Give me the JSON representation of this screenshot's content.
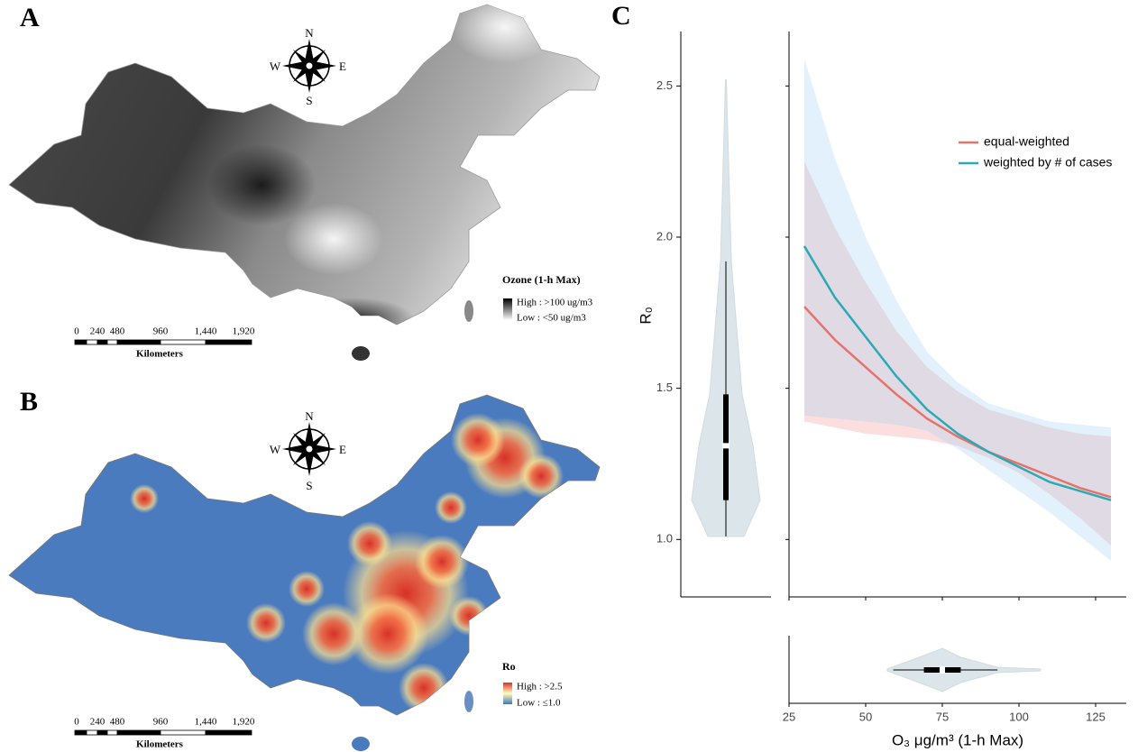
{
  "panels": {
    "a": {
      "label": "A",
      "compass": {
        "n": "N",
        "e": "E",
        "s": "S",
        "w": "W"
      },
      "legend": {
        "title": "Ozone (1-h Max)",
        "high": "High : >100 ug/m3",
        "low": "Low : <50 ug/m3"
      },
      "scale": {
        "ticks": [
          "0",
          "240",
          "480",
          "960",
          "1,440",
          "1,920"
        ],
        "unit": "Kilometers"
      }
    },
    "b": {
      "label": "B",
      "compass": {
        "n": "N",
        "e": "E",
        "s": "S",
        "w": "W"
      },
      "legend": {
        "title": "Ro",
        "high": "High : >2.5",
        "low": "Low : ≤1.0"
      },
      "scale": {
        "ticks": [
          "0",
          "240",
          "480",
          "960",
          "1,440",
          "1,920"
        ],
        "unit": "Kilometers"
      }
    }
  },
  "chart_data": {
    "type": "line",
    "panel_label": "C",
    "x_label": "O₃ μg/m³ (1-h Max)",
    "y_label": "R₀",
    "x": [
      30,
      40,
      50,
      60,
      70,
      80,
      90,
      100,
      110,
      120,
      130
    ],
    "series": [
      {
        "name": "equal-weighted",
        "color": "#e5736b",
        "values": [
          1.77,
          1.66,
          1.57,
          1.48,
          1.4,
          1.34,
          1.29,
          1.25,
          1.21,
          1.17,
          1.14
        ],
        "lower": [
          1.39,
          1.37,
          1.35,
          1.34,
          1.33,
          1.31,
          1.27,
          1.22,
          1.15,
          1.07,
          0.98
        ],
        "upper": [
          2.25,
          2.03,
          1.85,
          1.69,
          1.57,
          1.49,
          1.43,
          1.4,
          1.37,
          1.35,
          1.34
        ]
      },
      {
        "name": "weighted by # of cases",
        "color": "#2aaab4",
        "values": [
          1.97,
          1.8,
          1.67,
          1.54,
          1.43,
          1.35,
          1.29,
          1.24,
          1.19,
          1.16,
          1.13
        ],
        "lower": [
          1.41,
          1.4,
          1.39,
          1.38,
          1.36,
          1.3,
          1.23,
          1.16,
          1.09,
          1.01,
          0.93
        ],
        "upper": [
          2.59,
          2.26,
          2.0,
          1.79,
          1.62,
          1.52,
          1.45,
          1.42,
          1.39,
          1.38,
          1.37
        ]
      }
    ],
    "xlim": [
      25,
      135
    ],
    "ylim": [
      0.81,
      2.68
    ],
    "xticks": [
      25,
      50,
      75,
      100,
      125
    ],
    "yticks": [
      {
        "value": 1,
        "label": "1.0"
      },
      {
        "value": 1.5,
        "label": "1.5"
      },
      {
        "value": 2,
        "label": "2.0"
      },
      {
        "value": 2.5,
        "label": "2.5"
      }
    ],
    "y_distribution": {
      "min": 1.01,
      "whisker_low": 1.01,
      "q1": 1.13,
      "median": 1.31,
      "q3": 1.48,
      "whisker_high": 1.92,
      "max": 2.52
    },
    "x_distribution": {
      "min": 57,
      "whisker_low": 59,
      "q1": 69,
      "median": 75,
      "q3": 81,
      "whisker_high": 93,
      "max": 107
    },
    "legend": "top-right"
  }
}
